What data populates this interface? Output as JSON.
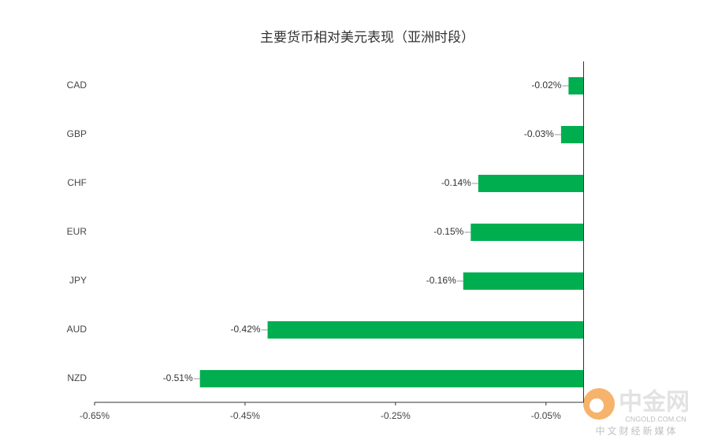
{
  "chart_data": {
    "type": "bar",
    "orientation": "horizontal",
    "title": "主要货币相对美元表现（亚洲时段）",
    "categories": [
      "CAD",
      "GBP",
      "CHF",
      "EUR",
      "JPY",
      "AUD",
      "NZD"
    ],
    "values": [
      -0.02,
      -0.03,
      -0.14,
      -0.15,
      -0.16,
      -0.42,
      -0.51
    ],
    "value_labels": [
      "-0.02%",
      "-0.03%",
      "-0.14%",
      "-0.15%",
      "-0.16%",
      "-0.42%",
      "-0.51%"
    ],
    "color": "#00ae4f",
    "xlim": [
      -0.65,
      0
    ],
    "xticks": [
      {
        "value": -0.65,
        "label": "-0.65%"
      },
      {
        "value": -0.45,
        "label": "-0.45%"
      },
      {
        "value": -0.25,
        "label": "-0.25%"
      },
      {
        "value": -0.05,
        "label": "-0.05%"
      }
    ],
    "grid": false
  },
  "watermark": {
    "name": "中金网",
    "domain": "CNGOLD.COM.CN",
    "slogan": "中文财经新媒体"
  }
}
